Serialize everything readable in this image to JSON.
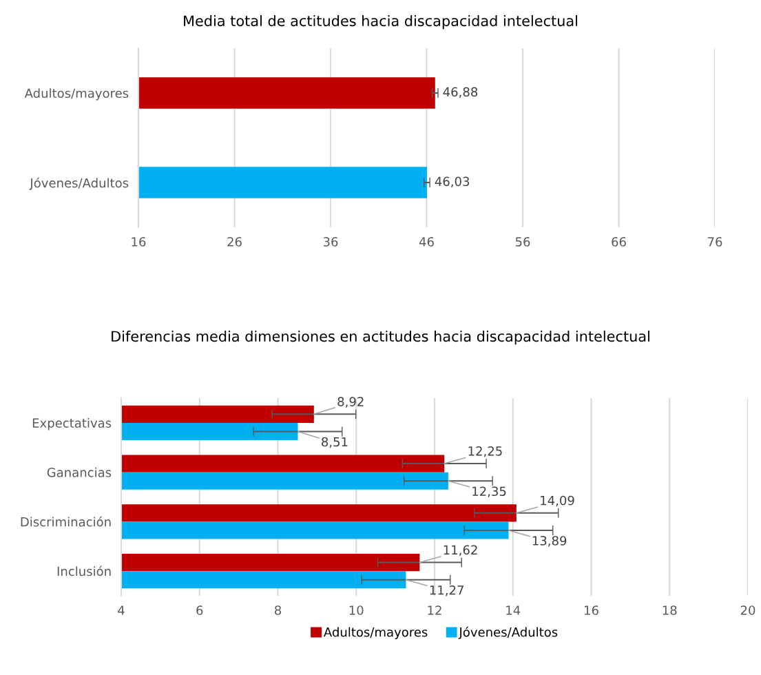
{
  "chart_data": [
    {
      "type": "bar",
      "orientation": "horizontal",
      "title": "Media total de actitudes hacia discapacidad intelectual",
      "categories": [
        "Adultos/mayores",
        "Jóvenes/Adultos"
      ],
      "values": [
        46.88,
        46.03
      ],
      "colors": [
        "#c00000",
        "#00b0f0"
      ],
      "errors": [
        0.3,
        0.3
      ],
      "value_labels": [
        "46,88",
        "46,03"
      ],
      "xlim": [
        16,
        76
      ],
      "xticks": [
        16,
        26,
        36,
        46,
        56,
        66,
        76
      ],
      "grid": "x",
      "legend": false
    },
    {
      "type": "bar",
      "orientation": "horizontal",
      "title": "Diferencias media dimensiones en actitudes hacia discapacidad intelectual",
      "categories": [
        "Expectativas",
        "Ganancias",
        "Discriminación",
        "Inclusión"
      ],
      "series": [
        {
          "name": "Adultos/mayores",
          "color": "#c00000",
          "values": [
            8.92,
            12.25,
            14.09,
            11.62
          ],
          "errors": [
            1.07,
            1.07,
            1.07,
            1.07
          ],
          "value_labels": [
            "8,92",
            "12,25",
            "14,09",
            "11,62"
          ]
        },
        {
          "name": "Jóvenes/Adultos",
          "color": "#00b0f0",
          "values": [
            8.51,
            12.35,
            13.89,
            11.27
          ],
          "errors": [
            1.13,
            1.13,
            1.13,
            1.13
          ],
          "value_labels": [
            "8,51",
            "12,35",
            "13,89",
            "11,27"
          ]
        }
      ],
      "xlim": [
        4,
        20
      ],
      "xticks": [
        4,
        6,
        8,
        10,
        12,
        14,
        16,
        18,
        20
      ],
      "grid": "x",
      "legend": "bottom"
    }
  ]
}
